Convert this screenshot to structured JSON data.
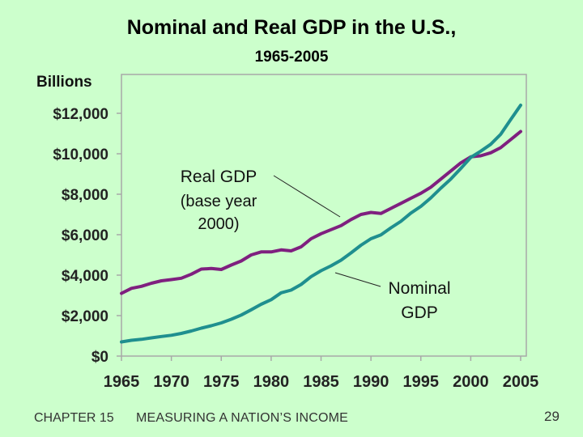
{
  "slide": {
    "footer": {
      "chapter": "CHAPTER 15",
      "chapter_title": "MEASURING A NATION’S INCOME",
      "page": "29"
    }
  },
  "chart_data": {
    "type": "line",
    "title": "Nominal and Real GDP in the U.S.,",
    "subtitle": "1965-2005",
    "unit_label": "Billions",
    "xlabel": "",
    "ylabel": "",
    "xlim": [
      1965,
      2005
    ],
    "ylim": [
      0,
      12000
    ],
    "x_ticks": [
      1965,
      1970,
      1975,
      1980,
      1985,
      1990,
      1995,
      2000,
      2005
    ],
    "y_ticks": [
      0,
      2000,
      4000,
      6000,
      8000,
      10000,
      12000
    ],
    "y_tick_labels": [
      "$0",
      "$2,000",
      "$4,000",
      "$6,000",
      "$8,000",
      "$10,000",
      "$12,000"
    ],
    "grid": false,
    "series": [
      {
        "name": "Real GDP",
        "label_lines": [
          "Real GDP",
          "(base year",
          "2000)"
        ],
        "color": "#7f1f7f",
        "x": [
          1965,
          1966,
          1967,
          1968,
          1969,
          1970,
          1971,
          1972,
          1973,
          1974,
          1975,
          1976,
          1977,
          1978,
          1979,
          1980,
          1981,
          1982,
          1983,
          1984,
          1985,
          1986,
          1987,
          1988,
          1989,
          1990,
          1991,
          1992,
          1993,
          1994,
          1995,
          1996,
          1997,
          1998,
          1999,
          2000,
          2001,
          2002,
          2003,
          2004,
          2005
        ],
        "values": [
          3100,
          3350,
          3450,
          3600,
          3720,
          3780,
          3850,
          4050,
          4300,
          4330,
          4280,
          4500,
          4700,
          5000,
          5150,
          5150,
          5250,
          5200,
          5400,
          5800,
          6050,
          6250,
          6450,
          6750,
          7000,
          7100,
          7050,
          7300,
          7550,
          7800,
          8050,
          8350,
          8750,
          9150,
          9550,
          9850,
          9900,
          10050,
          10300,
          10700,
          11100
        ]
      },
      {
        "name": "Nominal GDP",
        "label_lines": [
          "Nominal",
          "GDP"
        ],
        "color": "#1f8f8f",
        "x": [
          1965,
          1966,
          1967,
          1968,
          1969,
          1970,
          1971,
          1972,
          1973,
          1974,
          1975,
          1976,
          1977,
          1978,
          1979,
          1980,
          1981,
          1982,
          1983,
          1984,
          1985,
          1986,
          1987,
          1988,
          1989,
          1990,
          1991,
          1992,
          1993,
          1994,
          1995,
          1996,
          1997,
          1998,
          1999,
          2000,
          2001,
          2002,
          2003,
          2004,
          2005
        ],
        "values": [
          700,
          780,
          830,
          900,
          970,
          1030,
          1120,
          1240,
          1380,
          1500,
          1640,
          1820,
          2030,
          2290,
          2560,
          2790,
          3130,
          3260,
          3540,
          3930,
          4220,
          4460,
          4740,
          5100,
          5480,
          5800,
          5990,
          6340,
          6660,
          7070,
          7400,
          7820,
          8300,
          8750,
          9270,
          9820,
          10130,
          10470,
          10960,
          11690,
          12400
        ]
      }
    ]
  }
}
